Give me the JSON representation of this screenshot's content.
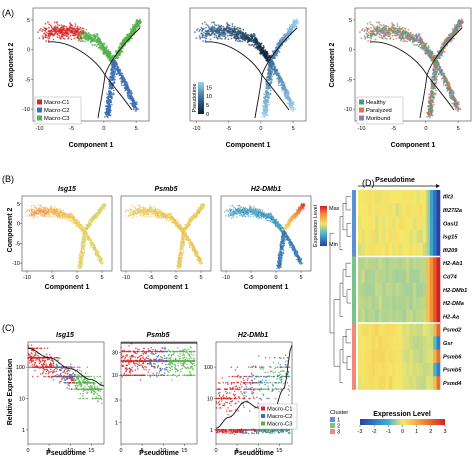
{
  "colors": {
    "macro_c1": "#d62728",
    "macro_c2": "#3b6fb6",
    "macro_c3": "#55b04b",
    "healthy": "#3aa17e",
    "paralyzed": "#e07b39",
    "moribund": "#8b7dbf",
    "cluster_1": "#5b8fd6",
    "cluster_2": "#77c38a",
    "cluster_3": "#f4877a"
  },
  "chart_data": [
    {
      "panel": "(A)",
      "type": "scatter",
      "subplots": [
        {
          "name": "cluster",
          "xlabel": "Component 1",
          "ylabel": "Component 2",
          "xticks": [
            -10,
            -5,
            0,
            5
          ],
          "yticks": [
            -10,
            -5,
            0,
            5
          ],
          "xlim": [
            -11,
            7
          ],
          "ylim": [
            -12,
            7
          ],
          "legend": {
            "placement": "bottom-left",
            "entries": [
              "Macro-C1",
              "Macro-C2",
              "Macro-C3"
            ]
          }
        },
        {
          "name": "pseudotime",
          "xlabel": "Component 1",
          "ylabel": "",
          "xticks": [
            -10,
            -5,
            0,
            5
          ],
          "xlim": [
            -11,
            7
          ],
          "ylim": [
            -12,
            7
          ],
          "colorbar": {
            "label": "Pseudotime",
            "ticks": [
              0,
              5,
              10,
              15
            ],
            "range": [
              0,
              18
            ]
          }
        },
        {
          "name": "condition",
          "xlabel": "Component 1",
          "ylabel": "Component 2",
          "xticks": [
            -10,
            -5,
            0,
            5
          ],
          "yticks": [
            -10,
            -5,
            0,
            5
          ],
          "xlim": [
            -11,
            7
          ],
          "ylim": [
            -12,
            7
          ],
          "legend": {
            "placement": "bottom-left",
            "entries": [
              "Healthy",
              "Paralyzed",
              "Moribund"
            ]
          }
        }
      ]
    },
    {
      "panel": "(B)",
      "type": "scatter",
      "genes": [
        "Isg15",
        "Psmb5",
        "H2-DMb1"
      ],
      "xlabel": "Component 1",
      "ylabel": "Component 2",
      "xticks": [
        -10,
        -5,
        0,
        5
      ],
      "yticks": [
        -10,
        -5,
        0,
        5
      ],
      "colorbar": {
        "label": "Expression Level",
        "max_label": "Max",
        "min_label": "Min"
      }
    },
    {
      "panel": "(C)",
      "type": "scatter",
      "xlabel": "Pseudotime",
      "ylabel": "Relative Expression",
      "xticks": [
        0,
        5,
        10,
        15
      ],
      "xlim": [
        0,
        18
      ],
      "legend": {
        "placement": "bottom-right",
        "entries": [
          "Macro-C1",
          "Macro-C2",
          "Macro-C3"
        ]
      },
      "subplots": [
        {
          "gene": "Isg15",
          "yticks": [
            "100",
            "10",
            "1"
          ],
          "trend": [
            [
              0,
              2.6
            ],
            [
              5,
              2.3
            ],
            [
              10,
              1.95
            ],
            [
              15,
              1.6
            ],
            [
              18,
              1.4
            ]
          ]
        },
        {
          "gene": "Psmb5",
          "yticks": [
            "30",
            "10",
            "3",
            "1"
          ],
          "trend": [
            [
              0,
              1.95
            ],
            [
              5,
              1.9
            ],
            [
              10,
              1.8
            ],
            [
              15,
              2.0
            ],
            [
              18,
              2.15
            ]
          ]
        },
        {
          "gene": "H2-DMb1",
          "yticks": [
            "100",
            "10",
            "1"
          ],
          "trend": [
            [
              0,
              0.05
            ],
            [
              3,
              0.4
            ],
            [
              7,
              0.9
            ],
            [
              10,
              0.7
            ],
            [
              13,
              0.3
            ],
            [
              16,
              1.3
            ],
            [
              18,
              2.7
            ]
          ]
        }
      ]
    },
    {
      "panel": "(D)",
      "type": "heatmap",
      "xlabel": "Pseudotime",
      "genes": [
        "Ifit3",
        "Ifi27l2a",
        "Oasl1",
        "Isg15",
        "Ifi209",
        "H2-Ab1",
        "Cd74",
        "H2-DMb1",
        "H2-DMa",
        "H2-Aa",
        "Psmd2",
        "Gsr",
        "Psmb6",
        "Psmb5",
        "Psmd4"
      ],
      "clusters": [
        1,
        1,
        1,
        1,
        1,
        2,
        2,
        2,
        2,
        2,
        3,
        3,
        3,
        3,
        3
      ],
      "cluster_legend": {
        "title": "Cluster",
        "entries": [
          "1",
          "2",
          "3"
        ]
      },
      "colorbar": {
        "title": "Expression Level",
        "ticks": [
          -3,
          -2,
          -1,
          0,
          1,
          2,
          3
        ]
      }
    }
  ]
}
